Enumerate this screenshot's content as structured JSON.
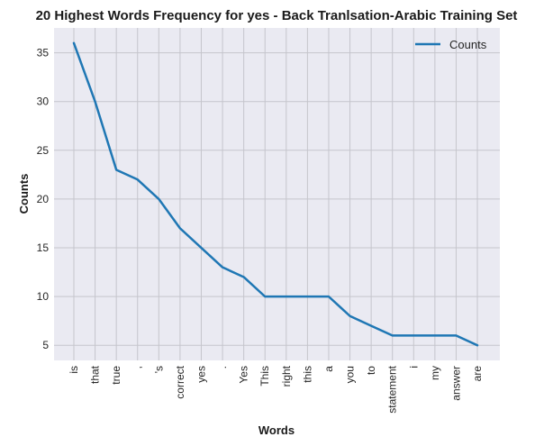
{
  "chart_data": {
    "type": "line",
    "title": "20 Highest Words Frequency for yes - Back Tranlsation-Arabic Training Set",
    "xlabel": "Words",
    "ylabel": "Counts",
    "categories": [
      "is",
      "that",
      "true",
      ",",
      "'s",
      "correct",
      "yes",
      ".",
      "Yes",
      "This",
      "right",
      "this",
      "a",
      "you",
      "to",
      "statement",
      "i",
      "my",
      "answer",
      "are"
    ],
    "series": [
      {
        "name": "Counts",
        "color": "#1f77b4",
        "values": [
          36,
          30,
          23,
          22,
          20,
          17,
          15,
          13,
          12,
          10,
          10,
          10,
          10,
          8,
          7,
          6,
          6,
          6,
          6,
          5
        ]
      }
    ],
    "yticks": [
      5,
      10,
      15,
      20,
      25,
      30,
      35
    ],
    "ylim": [
      3.45,
      37.55
    ],
    "grid": true,
    "legend_position": "top-right",
    "background_color": "#eaeaf2"
  }
}
